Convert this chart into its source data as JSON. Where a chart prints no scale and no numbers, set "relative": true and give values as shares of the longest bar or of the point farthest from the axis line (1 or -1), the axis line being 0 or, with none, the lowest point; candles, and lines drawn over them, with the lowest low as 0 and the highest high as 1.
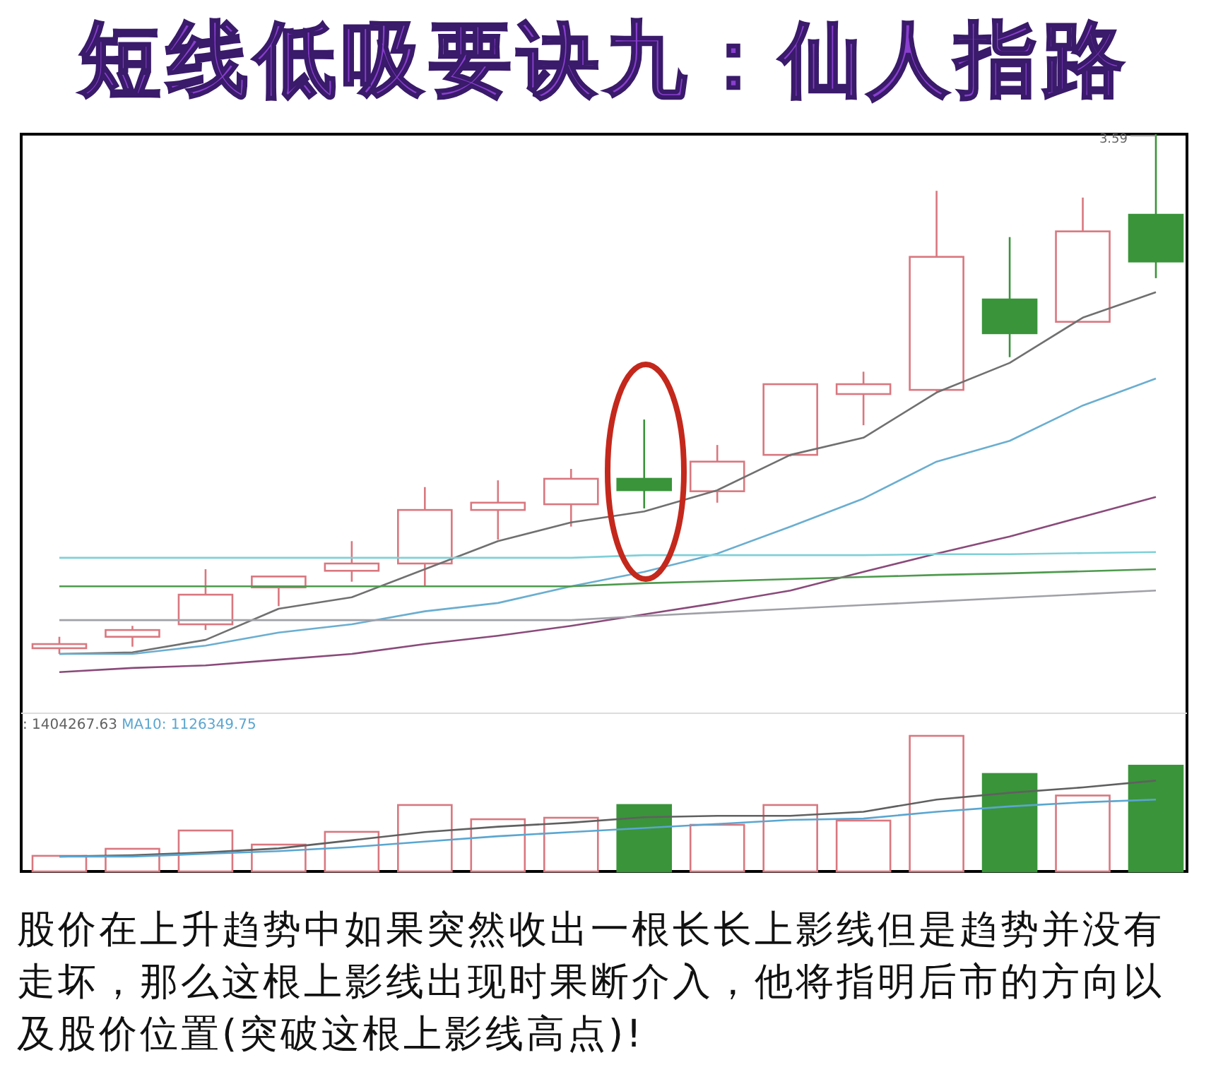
{
  "chart_data": [
    {
      "type": "candlestick",
      "title": "短线低吸要诀九：仙人指路",
      "relative": true,
      "categories": [
        null,
        null,
        null,
        null,
        null,
        null,
        null,
        null,
        null,
        null,
        null,
        null,
        null,
        null,
        null,
        null
      ],
      "ohlc": [
        [
          0.011,
          0.033,
          0,
          0.019
        ],
        [
          0.033,
          0.054,
          0.014,
          0.046
        ],
        [
          0.057,
          0.163,
          0.046,
          0.114
        ],
        [
          0.128,
          0.149,
          0.092,
          0.149
        ],
        [
          0.16,
          0.217,
          0.139,
          0.174
        ],
        [
          0.174,
          0.321,
          0.13,
          0.277
        ],
        [
          0.277,
          0.334,
          0.22,
          0.291
        ],
        [
          0.288,
          0.356,
          0.245,
          0.337
        ],
        [
          0.337,
          0.451,
          0.28,
          0.315
        ],
        [
          0.313,
          0.402,
          0.291,
          0.37
        ],
        [
          0.383,
          0.519,
          0.38,
          0.519
        ],
        [
          0.5,
          0.543,
          0.44,
          0.519
        ],
        [
          0.508,
          0.891,
          0.505,
          0.764
        ],
        [
          0.682,
          0.802,
          0.571,
          0.617
        ],
        [
          0.639,
          0.878,
          0.639,
          0.813
        ],
        [
          0.845,
          1,
          0.723,
          0.755
        ]
      ],
      "colors": [
        "#d9777f",
        "#d9777f",
        "#d9777f",
        "#d9777f",
        "#d9777f",
        "#d9777f",
        "#d9777f",
        "#d9777f",
        "#3a943a",
        "#d9777f",
        "#d9777f",
        "#d9777f",
        "#d9777f",
        "#3a943a",
        "#d9777f",
        "#3a943a"
      ],
      "series": [
        {
          "type": "line",
          "color": "#707070",
          "values": [
            0,
            0.003,
            0.027,
            0.087,
            0.109,
            0.163,
            0.217,
            0.253,
            0.274,
            0.315,
            0.383,
            0.416,
            0.503,
            0.56,
            0.647,
            0.696
          ]
        },
        {
          "type": "line",
          "color": "#6aaed0",
          "values": [
            0,
            0,
            0.016,
            0.041,
            0.057,
            0.082,
            0.098,
            0.13,
            0.158,
            0.193,
            0.245,
            0.299,
            0.37,
            0.41,
            0.478,
            0.53
          ]
        },
        {
          "type": "line",
          "color": "#8a4a7a",
          "values": [
            -0.035,
            -0.027,
            -0.022,
            -0.011,
            0,
            0.019,
            0.035,
            0.054,
            0.076,
            0.098,
            0.122,
            0.158,
            0.193,
            0.226,
            0.264,
            0.302
          ]
        },
        {
          "type": "line",
          "color": "#7fd0d8",
          "values": [
            0.185,
            0.185,
            0.185,
            0.185,
            0.185,
            0.185,
            0.185,
            0.185,
            0.19,
            0.19,
            0.19,
            0.19,
            0.192,
            0.192,
            0.194,
            0.196
          ]
        },
        {
          "type": "line",
          "color": "#4e9a4e",
          "values": [
            0.13,
            0.13,
            0.13,
            0.13,
            0.13,
            0.13,
            0.13,
            0.13,
            0.136,
            0.14,
            0.144,
            0.148,
            0.152,
            0.155,
            0.159,
            0.163
          ]
        },
        {
          "type": "line",
          "color": "#a0a0a8",
          "values": [
            0.065,
            0.065,
            0.065,
            0.065,
            0.065,
            0.065,
            0.065,
            0.065,
            0.073,
            0.08,
            0.087,
            0.094,
            0.101,
            0.108,
            0.115,
            0.122
          ]
        }
      ],
      "annotations": [
        "3.59"
      ]
    },
    {
      "type": "bar",
      "relative": true,
      "categories": [
        null,
        null,
        null,
        null,
        null,
        null,
        null,
        null,
        null,
        null,
        null,
        null,
        null,
        null,
        null,
        null
      ],
      "values": [
        0.115,
        0.167,
        0.302,
        0.198,
        0.292,
        0.49,
        0.385,
        0.396,
        0.49,
        0.344,
        0.49,
        0.375,
        1,
        0.719,
        0.56,
        0.78
      ],
      "colors": [
        "#d9777f",
        "#d9777f",
        "#d9777f",
        "#d9777f",
        "#d9777f",
        "#d9777f",
        "#d9777f",
        "#d9777f",
        "#3a943a",
        "#d9777f",
        "#d9777f",
        "#d9777f",
        "#d9777f",
        "#3a943a",
        "#d9777f",
        "#3a943a"
      ],
      "series": [
        {
          "type": "line",
          "color": "#606060",
          "values": [
            0.11,
            0.12,
            0.14,
            0.17,
            0.23,
            0.29,
            0.33,
            0.36,
            0.4,
            0.41,
            0.41,
            0.44,
            0.53,
            0.58,
            0.62,
            0.67
          ]
        },
        {
          "type": "line",
          "color": "#5aa6d0",
          "values": [
            0.11,
            0.11,
            0.13,
            0.15,
            0.18,
            0.22,
            0.26,
            0.29,
            0.32,
            0.35,
            0.38,
            0.39,
            0.44,
            0.48,
            0.51,
            0.53
          ]
        }
      ],
      "annotations": [
        ": 1404267.63",
        "MA10: 1126349.75",
        "股价在上升趋势中如果突然收出一根长长上影线但是趋势并没有走坏，那么这根上影线出现时果断介入，他将指明后市的方向以及股价位置(突破这根上影线高点)!"
      ]
    }
  ]
}
